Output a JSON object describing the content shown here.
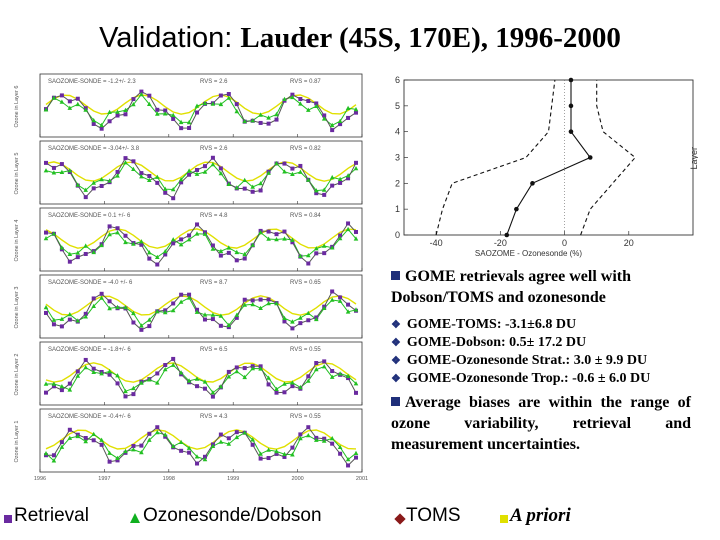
{
  "title": {
    "part1": "Validation: ",
    "part2": "Lauder (45S, 170E), 1996-2000"
  },
  "colors": {
    "retrieval": "#6a2aa0",
    "ozonesonde": "#22c022",
    "toms": "#8a1a1a",
    "apriori": "#e0e000",
    "bullet": "#1f2f7a"
  },
  "chart_data": [
    {
      "type": "line",
      "x_ticks": [
        "1996",
        "1997",
        "1998",
        "1999",
        "2000",
        "2001"
      ],
      "panels": [
        {
          "ylabel": "Ozone in Layer 6",
          "stat_label": "SAOZOME-SONDE = ",
          "stat": "-1.2+/- 2.3",
          "rvs_label": "RVS =",
          "rvs": "2.6",
          "r_label": "RVS =",
          "r": "0.87"
        },
        {
          "ylabel": "Ozone in Layer 5",
          "stat_label": "SAOZOME-SONDE = ",
          "stat": "-3.04+/- 3.8",
          "rvs_label": "RVS =",
          "rvs": "2.6",
          "r_label": "RVS =",
          "r": "0.82"
        },
        {
          "ylabel": "Ozone in Layer 4",
          "stat_label": "SAOZOME-SONDE = ",
          "stat": "0.1 +/- 6",
          "rvs_label": "RVS =",
          "rvs": "4.8",
          "r_label": "RVS =",
          "r": "0.84"
        },
        {
          "ylabel": "Ozone in Layer 3",
          "stat_label": "SAOZOME-SONDE = ",
          "stat": "-4.0 +/- 6",
          "rvs_label": "RVS =",
          "rvs": "8.7",
          "r_label": "RVS =",
          "r": "0.65"
        },
        {
          "ylabel": "Ozone in Layer 2",
          "stat_label": "SAOZOME-SONDE = ",
          "stat": "-1.8+/- 6",
          "rvs_label": "RVS =",
          "rvs": "6.5",
          "r_label": "RVS =",
          "r": "0.55"
        },
        {
          "ylabel": "Ozone in Layer 1",
          "stat_label": "SAOZOME-SONDE = ",
          "stat": "-0.4+/- 6",
          "rvs_label": "RVS =",
          "rvs": "4.3",
          "r_label": "RVS =",
          "r": "0.55"
        }
      ]
    },
    {
      "type": "line",
      "ylabel": "Layer",
      "xlabel": "SAOZOME - Ozonesonde (%)",
      "ylim": [
        0,
        6
      ],
      "xlim": [
        -50,
        40
      ],
      "y_ticks": [
        "0",
        "1",
        "2",
        "3",
        "4",
        "5",
        "6"
      ],
      "x_ticks": [
        "-40",
        "-20",
        "0",
        "20"
      ],
      "series": [
        {
          "style": "solid",
          "x": [
            -18,
            -15,
            -10,
            8,
            2,
            2,
            2
          ],
          "y": [
            0,
            1,
            2,
            3,
            4,
            5,
            6
          ]
        },
        {
          "style": "dashed",
          "x": [
            -40,
            -38,
            -35,
            -12,
            -5,
            -4,
            -3
          ],
          "y": [
            0,
            1,
            2,
            3,
            4,
            5,
            6
          ]
        },
        {
          "style": "dashed",
          "x": [
            5,
            8,
            15,
            22,
            12,
            10,
            10
          ],
          "y": [
            0,
            1,
            2,
            3,
            4,
            5,
            6
          ]
        }
      ]
    }
  ],
  "bullets": {
    "b1": "GOME retrievals agree well with Dobson/TOMS and ozonesonde",
    "subs": [
      "GOME-TOMS:  -3.1±6.8 DU",
      "GOME-Dobson: 0.5± 17.2 DU",
      "GOME-Ozonesonde Strat.: 3.0 ± 9.9 DU",
      "GOME-Ozonesonde Trop.: -0.6 ± 6.0 DU"
    ],
    "b3": "Average biases are within the range of ozone variability, retrieval and measurement uncertainties."
  },
  "legend": {
    "retrieval": "Retrieval",
    "ozonesonde": "Ozonesonde/Dobson",
    "toms": "TOMS",
    "apriori": "A priori"
  }
}
